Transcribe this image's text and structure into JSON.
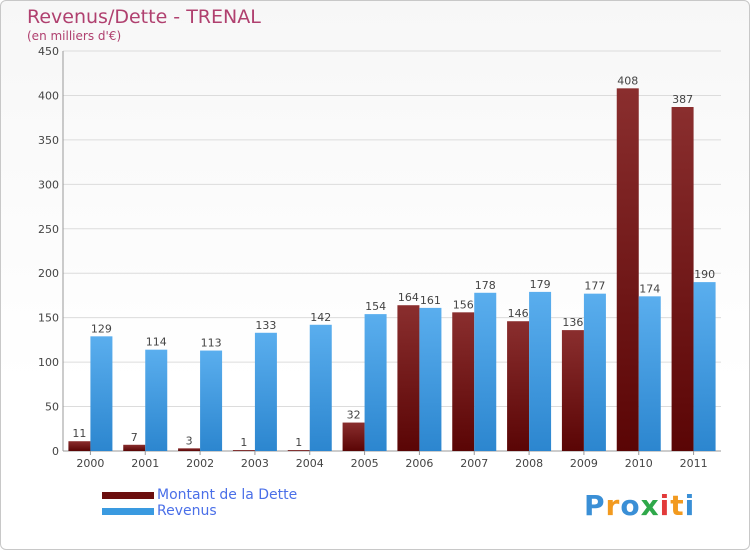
{
  "chart_data": {
    "type": "bar",
    "title": "Revenus/Dette - TRENAL",
    "subtitle": "(en milliers d'€)",
    "categories": [
      "2000",
      "2001",
      "2002",
      "2003",
      "2004",
      "2005",
      "2006",
      "2007",
      "2008",
      "2009",
      "2010",
      "2011"
    ],
    "series": [
      {
        "name": "Montant de la Dette",
        "color": "#7a1a1a",
        "values": [
          11,
          7,
          3,
          1,
          1,
          32,
          164,
          156,
          146,
          136,
          408,
          387
        ]
      },
      {
        "name": "Revenus",
        "color": "#3a9ae0",
        "values": [
          129,
          114,
          113,
          133,
          142,
          154,
          161,
          178,
          179,
          177,
          174,
          190
        ]
      }
    ],
    "ylim": [
      0,
      450
    ],
    "yticks": [
      0,
      50,
      100,
      150,
      200,
      250,
      300,
      350,
      400,
      450
    ],
    "grid": true,
    "legend": "bottom-left"
  },
  "legend": {
    "items": [
      {
        "label": "Montant de la Dette",
        "color": "#6b0e0e"
      },
      {
        "label": "Revenus",
        "color": "#3a9ae0"
      }
    ]
  },
  "logo": {
    "letters": [
      {
        "ch": "P",
        "color": "#3a8fd6"
      },
      {
        "ch": "r",
        "color": "#f29a1f"
      },
      {
        "ch": "o",
        "color": "#3a8fd6"
      },
      {
        "ch": "x",
        "color": "#2fa84a"
      },
      {
        "ch": "i",
        "color": "#e23a3a"
      },
      {
        "ch": "t",
        "color": "#f29a1f"
      },
      {
        "ch": "i",
        "color": "#3a8fd6"
      }
    ]
  }
}
